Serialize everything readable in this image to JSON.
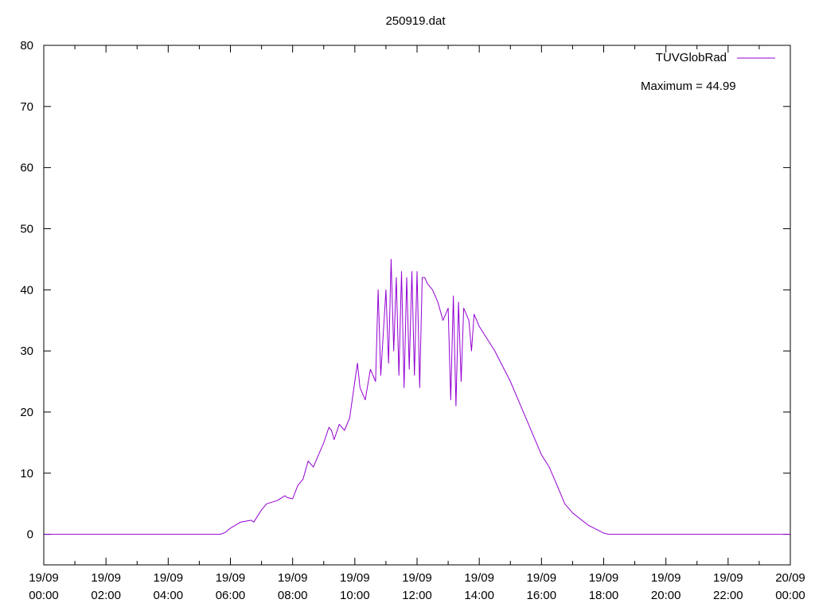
{
  "chart_data": {
    "type": "line",
    "title": "250919.dat",
    "xlabel": "",
    "ylabel": "",
    "xlim": [
      "19/09 00:00",
      "20/09 00:00"
    ],
    "ylim": [
      -5,
      80
    ],
    "grid": false,
    "legend_position": "top-right",
    "x_ticks": [
      {
        "date": "19/09",
        "time": "00:00"
      },
      {
        "date": "19/09",
        "time": "02:00"
      },
      {
        "date": "19/09",
        "time": "04:00"
      },
      {
        "date": "19/09",
        "time": "06:00"
      },
      {
        "date": "19/09",
        "time": "08:00"
      },
      {
        "date": "19/09",
        "time": "10:00"
      },
      {
        "date": "19/09",
        "time": "12:00"
      },
      {
        "date": "19/09",
        "time": "14:00"
      },
      {
        "date": "19/09",
        "time": "16:00"
      },
      {
        "date": "19/09",
        "time": "18:00"
      },
      {
        "date": "19/09",
        "time": "20:00"
      },
      {
        "date": "19/09",
        "time": "22:00"
      },
      {
        "date": "20/09",
        "time": "00:00"
      }
    ],
    "y_ticks": [
      "0",
      "10",
      "20",
      "30",
      "40",
      "50",
      "60",
      "70",
      "80"
    ],
    "annotation": "Maximum = 44.99",
    "series": [
      {
        "name": "TUVGlobRad",
        "color": "#9400d3",
        "x": [
          "00:00",
          "01:00",
          "02:00",
          "03:00",
          "04:00",
          "05:00",
          "05:40",
          "05:50",
          "06:00",
          "06:20",
          "06:40",
          "06:45",
          "07:00",
          "07:10",
          "07:30",
          "07:45",
          "07:50",
          "08:00",
          "08:10",
          "08:20",
          "08:30",
          "08:40",
          "08:50",
          "09:00",
          "09:10",
          "09:15",
          "09:20",
          "09:30",
          "09:40",
          "09:50",
          "10:00",
          "10:05",
          "10:10",
          "10:15",
          "10:20",
          "10:30",
          "10:40",
          "10:45",
          "10:50",
          "11:00",
          "11:05",
          "11:10",
          "11:15",
          "11:20",
          "11:25",
          "11:30",
          "11:35",
          "11:40",
          "11:45",
          "11:50",
          "11:55",
          "12:00",
          "12:05",
          "12:10",
          "12:15",
          "12:20",
          "12:30",
          "12:40",
          "12:50",
          "13:00",
          "13:05",
          "13:10",
          "13:15",
          "13:20",
          "13:25",
          "13:30",
          "13:40",
          "13:45",
          "13:50",
          "14:00",
          "14:30",
          "15:00",
          "15:30",
          "16:00",
          "16:15",
          "16:30",
          "16:45",
          "17:00",
          "17:30",
          "18:00",
          "18:10",
          "19:00",
          "20:00",
          "21:00",
          "22:00",
          "23:00",
          "24:00"
        ],
        "values": [
          0,
          0,
          0,
          0,
          0,
          0,
          0,
          0.3,
          1,
          2,
          2.3,
          2,
          4,
          5,
          5.5,
          6.3,
          6,
          5.8,
          8,
          9,
          12,
          11,
          13,
          15,
          17.5,
          17,
          15.5,
          18,
          17,
          19,
          25,
          28,
          24,
          23,
          22,
          27,
          25,
          40,
          26,
          40,
          28,
          45,
          30,
          42,
          26,
          43,
          24,
          42,
          27,
          43,
          26,
          43,
          24,
          42,
          42,
          41,
          40,
          38,
          35,
          37,
          22,
          39,
          21,
          38,
          25,
          37,
          35,
          30,
          36,
          34,
          30,
          25,
          19,
          13,
          11,
          8,
          5,
          3.5,
          1.5,
          0.2,
          0,
          0,
          0,
          0,
          0,
          0,
          0
        ]
      }
    ]
  }
}
